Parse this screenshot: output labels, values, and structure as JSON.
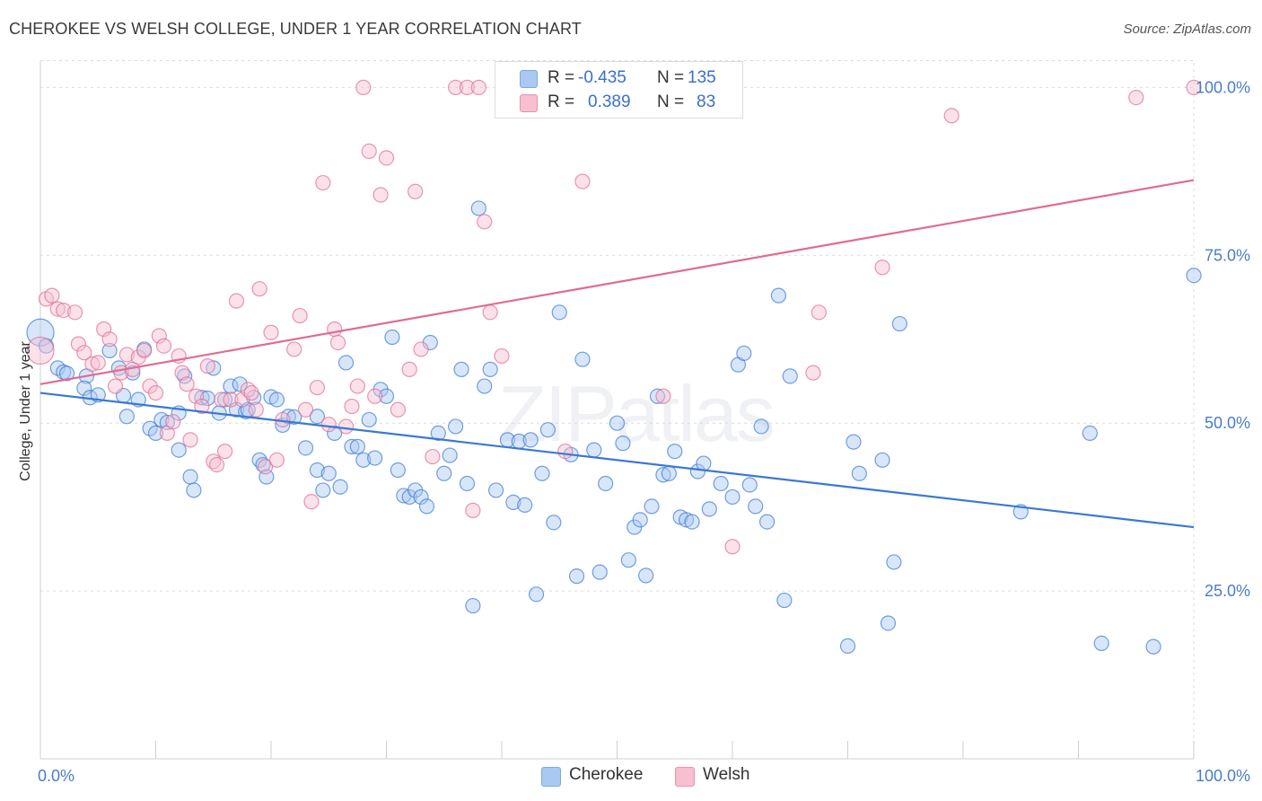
{
  "title": "CHEROKEE VS WELSH COLLEGE, UNDER 1 YEAR CORRELATION CHART",
  "source": "Source: ZipAtlas.com",
  "watermark": "ZIPatlas",
  "legend": {
    "rows": [
      {
        "r_label": "R =",
        "r_value": "-0.435",
        "n_label": "N =",
        "n_value": "135",
        "color": "#a9c8f2",
        "border": "#7ea8e0"
      },
      {
        "r_label": "R =",
        "r_value": "0.389",
        "n_label": "N =",
        "n_value": "83",
        "color": "#f7bfd0",
        "border": "#e992ad"
      }
    ]
  },
  "bottom_legend": [
    {
      "label": "Cherokee",
      "color": "#a9c8f2",
      "border": "#7ea8e0"
    },
    {
      "label": "Welsh",
      "color": "#f7bfd0",
      "border": "#e992ad"
    }
  ],
  "chart_data": {
    "type": "scatter",
    "ylabel": "College, Under 1 year",
    "xlim": [
      0,
      100
    ],
    "ylim": [
      0,
      105
    ],
    "x_tick_labels": [
      "0.0%",
      "100.0%"
    ],
    "y_ticks": [
      25,
      50,
      75,
      100
    ],
    "y_tick_labels": [
      "25.0%",
      "50.0%",
      "75.0%",
      "100.0%"
    ],
    "grid": true,
    "colors": {
      "cherokee": "#3b78d4",
      "welsh": "#e06b93",
      "cherokee_fill": "rgba(169,200,242,0.45)",
      "welsh_fill": "rgba(247,191,208,0.45)"
    },
    "series": [
      {
        "name": "Cherokee",
        "trend": {
          "x0": 0,
          "y0": 54.5,
          "x1": 100,
          "y1": 34.5
        },
        "points": [
          [
            0,
            63.5
          ],
          [
            0.5,
            61.5
          ],
          [
            1.5,
            58.2
          ],
          [
            2,
            57.6
          ],
          [
            2.3,
            57.4
          ],
          [
            4,
            57.0
          ],
          [
            3.8,
            55.2
          ],
          [
            4.3,
            53.8
          ],
          [
            5,
            54.2
          ],
          [
            6,
            60.8
          ],
          [
            6.8,
            58.2
          ],
          [
            7.2,
            54.1
          ],
          [
            7.5,
            51.0
          ],
          [
            8,
            57.5
          ],
          [
            8.5,
            53.5
          ],
          [
            9,
            61.0
          ],
          [
            9.5,
            49.2
          ],
          [
            10,
            48.5
          ],
          [
            10.5,
            50.5
          ],
          [
            11,
            50.1
          ],
          [
            12,
            51.5
          ],
          [
            12,
            46.0
          ],
          [
            12.5,
            57.0
          ],
          [
            13,
            42.0
          ],
          [
            13.3,
            40.0
          ],
          [
            14,
            53.8
          ],
          [
            14.5,
            53.7
          ],
          [
            15,
            58.2
          ],
          [
            15.5,
            51.5
          ],
          [
            16,
            53.5
          ],
          [
            16.5,
            55.5
          ],
          [
            17,
            52.0
          ],
          [
            17.3,
            55.8
          ],
          [
            17.8,
            51.7
          ],
          [
            18,
            52.0
          ],
          [
            18.5,
            53.8
          ],
          [
            19,
            44.5
          ],
          [
            19.3,
            43.8
          ],
          [
            19.6,
            42.0
          ],
          [
            20,
            53.9
          ],
          [
            20.5,
            53.5
          ],
          [
            21,
            49.7
          ],
          [
            21.5,
            51.0
          ],
          [
            22,
            50.9
          ],
          [
            23,
            46.3
          ],
          [
            24,
            51.0
          ],
          [
            24,
            43.0
          ],
          [
            24.5,
            40.0
          ],
          [
            25,
            42.5
          ],
          [
            25.5,
            48.5
          ],
          [
            26,
            40.5
          ],
          [
            26.5,
            59.0
          ],
          [
            27,
            46.5
          ],
          [
            27.5,
            46.5
          ],
          [
            28,
            44.5
          ],
          [
            28.5,
            50.5
          ],
          [
            29,
            44.8
          ],
          [
            29.5,
            55.0
          ],
          [
            30,
            54.0
          ],
          [
            30.5,
            62.8
          ],
          [
            31,
            43.0
          ],
          [
            31.5,
            39.2
          ],
          [
            32,
            39.0
          ],
          [
            32.5,
            40.0
          ],
          [
            33,
            39.0
          ],
          [
            33.5,
            37.6
          ],
          [
            33.8,
            62.0
          ],
          [
            34.5,
            48.5
          ],
          [
            35,
            42.5
          ],
          [
            35.5,
            45.2
          ],
          [
            36,
            49.5
          ],
          [
            36.5,
            58.0
          ],
          [
            37,
            41.0
          ],
          [
            37.5,
            22.8
          ],
          [
            38,
            82.0
          ],
          [
            38.5,
            55.5
          ],
          [
            39,
            58.0
          ],
          [
            39.5,
            40.0
          ],
          [
            40.5,
            47.5
          ],
          [
            41,
            38.2
          ],
          [
            41.5,
            47.3
          ],
          [
            42,
            37.8
          ],
          [
            42.5,
            47.5
          ],
          [
            43,
            24.5
          ],
          [
            43.5,
            42.5
          ],
          [
            44,
            49.0
          ],
          [
            44.5,
            35.2
          ],
          [
            45,
            66.5
          ],
          [
            46,
            45.3
          ],
          [
            46.5,
            27.2
          ],
          [
            47,
            59.5
          ],
          [
            48,
            46.0
          ],
          [
            48.5,
            27.8
          ],
          [
            49,
            41.0
          ],
          [
            50,
            50.0
          ],
          [
            50.5,
            47.0
          ],
          [
            51,
            29.6
          ],
          [
            51.5,
            34.5
          ],
          [
            52,
            35.6
          ],
          [
            52.5,
            27.3
          ],
          [
            53,
            37.6
          ],
          [
            53.5,
            54.0
          ],
          [
            54,
            42.3
          ],
          [
            54.5,
            42.5
          ],
          [
            55,
            45.8
          ],
          [
            55.5,
            36.0
          ],
          [
            56,
            35.6
          ],
          [
            56.5,
            35.3
          ],
          [
            57,
            42.8
          ],
          [
            57.5,
            44.0
          ],
          [
            58,
            37.2
          ],
          [
            59,
            41.0
          ],
          [
            60,
            39.0
          ],
          [
            60.5,
            58.7
          ],
          [
            61,
            60.4
          ],
          [
            61.5,
            40.8
          ],
          [
            62,
            37.6
          ],
          [
            62.5,
            49.5
          ],
          [
            63,
            35.3
          ],
          [
            64,
            69.0
          ],
          [
            64.5,
            23.6
          ],
          [
            65,
            57.0
          ],
          [
            70,
            16.8
          ],
          [
            70.5,
            47.2
          ],
          [
            71,
            42.5
          ],
          [
            73,
            44.5
          ],
          [
            73.5,
            20.2
          ],
          [
            74,
            29.3
          ],
          [
            74.5,
            64.8
          ],
          [
            85,
            36.8
          ],
          [
            91,
            48.5
          ],
          [
            92,
            17.2
          ],
          [
            96.5,
            16.7
          ],
          [
            100,
            72.0
          ]
        ]
      },
      {
        "name": "Welsh",
        "trend": {
          "x0": 0,
          "y0": 55.8,
          "x1": 100,
          "y1": 86.2
        },
        "points": [
          [
            0,
            60.8
          ],
          [
            0.5,
            68.5
          ],
          [
            1,
            69.0
          ],
          [
            1.5,
            67.0
          ],
          [
            2,
            66.8
          ],
          [
            3,
            66.5
          ],
          [
            3.3,
            61.8
          ],
          [
            3.8,
            60.5
          ],
          [
            4.5,
            58.8
          ],
          [
            5,
            59.0
          ],
          [
            5.5,
            64.0
          ],
          [
            6,
            62.5
          ],
          [
            6.5,
            55.5
          ],
          [
            7,
            57.5
          ],
          [
            7.5,
            60.2
          ],
          [
            8,
            58.0
          ],
          [
            8.5,
            59.8
          ],
          [
            9,
            60.8
          ],
          [
            9.5,
            55.5
          ],
          [
            10,
            54.5
          ],
          [
            10.3,
            63.0
          ],
          [
            10.7,
            61.5
          ],
          [
            11,
            48.5
          ],
          [
            11.5,
            50.2
          ],
          [
            12,
            60.0
          ],
          [
            12.3,
            57.5
          ],
          [
            12.7,
            55.8
          ],
          [
            13,
            47.5
          ],
          [
            13.5,
            54.0
          ],
          [
            14,
            52.5
          ],
          [
            14.5,
            58.5
          ],
          [
            15,
            44.3
          ],
          [
            15.3,
            43.8
          ],
          [
            15.7,
            53.5
          ],
          [
            16,
            45.8
          ],
          [
            16.5,
            53.5
          ],
          [
            17,
            68.2
          ],
          [
            17.5,
            53.5
          ],
          [
            18,
            55.0
          ],
          [
            18.3,
            54.5
          ],
          [
            18.7,
            52.0
          ],
          [
            19,
            70.0
          ],
          [
            19.5,
            43.5
          ],
          [
            20,
            63.5
          ],
          [
            20.5,
            44.5
          ],
          [
            21,
            50.5
          ],
          [
            22,
            61.0
          ],
          [
            22.5,
            66.0
          ],
          [
            23,
            52.0
          ],
          [
            23.5,
            38.3
          ],
          [
            24,
            55.3
          ],
          [
            24.5,
            85.8
          ],
          [
            25,
            49.8
          ],
          [
            25.5,
            64.0
          ],
          [
            25.8,
            62.0
          ],
          [
            26.5,
            49.5
          ],
          [
            27,
            52.5
          ],
          [
            27.5,
            55.5
          ],
          [
            28,
            100.0
          ],
          [
            28.5,
            90.5
          ],
          [
            29,
            54.0
          ],
          [
            29.5,
            84.0
          ],
          [
            30,
            89.5
          ],
          [
            31,
            52.0
          ],
          [
            32,
            58.0
          ],
          [
            32.5,
            84.5
          ],
          [
            33,
            61.0
          ],
          [
            34,
            45.0
          ],
          [
            36,
            100.0
          ],
          [
            37,
            100.0
          ],
          [
            37.5,
            37.0
          ],
          [
            38,
            100.0
          ],
          [
            38.5,
            80.0
          ],
          [
            39,
            66.5
          ],
          [
            40,
            60.0
          ],
          [
            41,
            100.0
          ],
          [
            45.5,
            45.8
          ],
          [
            47,
            86.0
          ],
          [
            54,
            54.0
          ],
          [
            60,
            31.6
          ],
          [
            67,
            57.5
          ],
          [
            67.5,
            66.5
          ],
          [
            73,
            73.2
          ],
          [
            79,
            95.8
          ],
          [
            95,
            98.5
          ],
          [
            100,
            100.0
          ]
        ]
      }
    ]
  }
}
